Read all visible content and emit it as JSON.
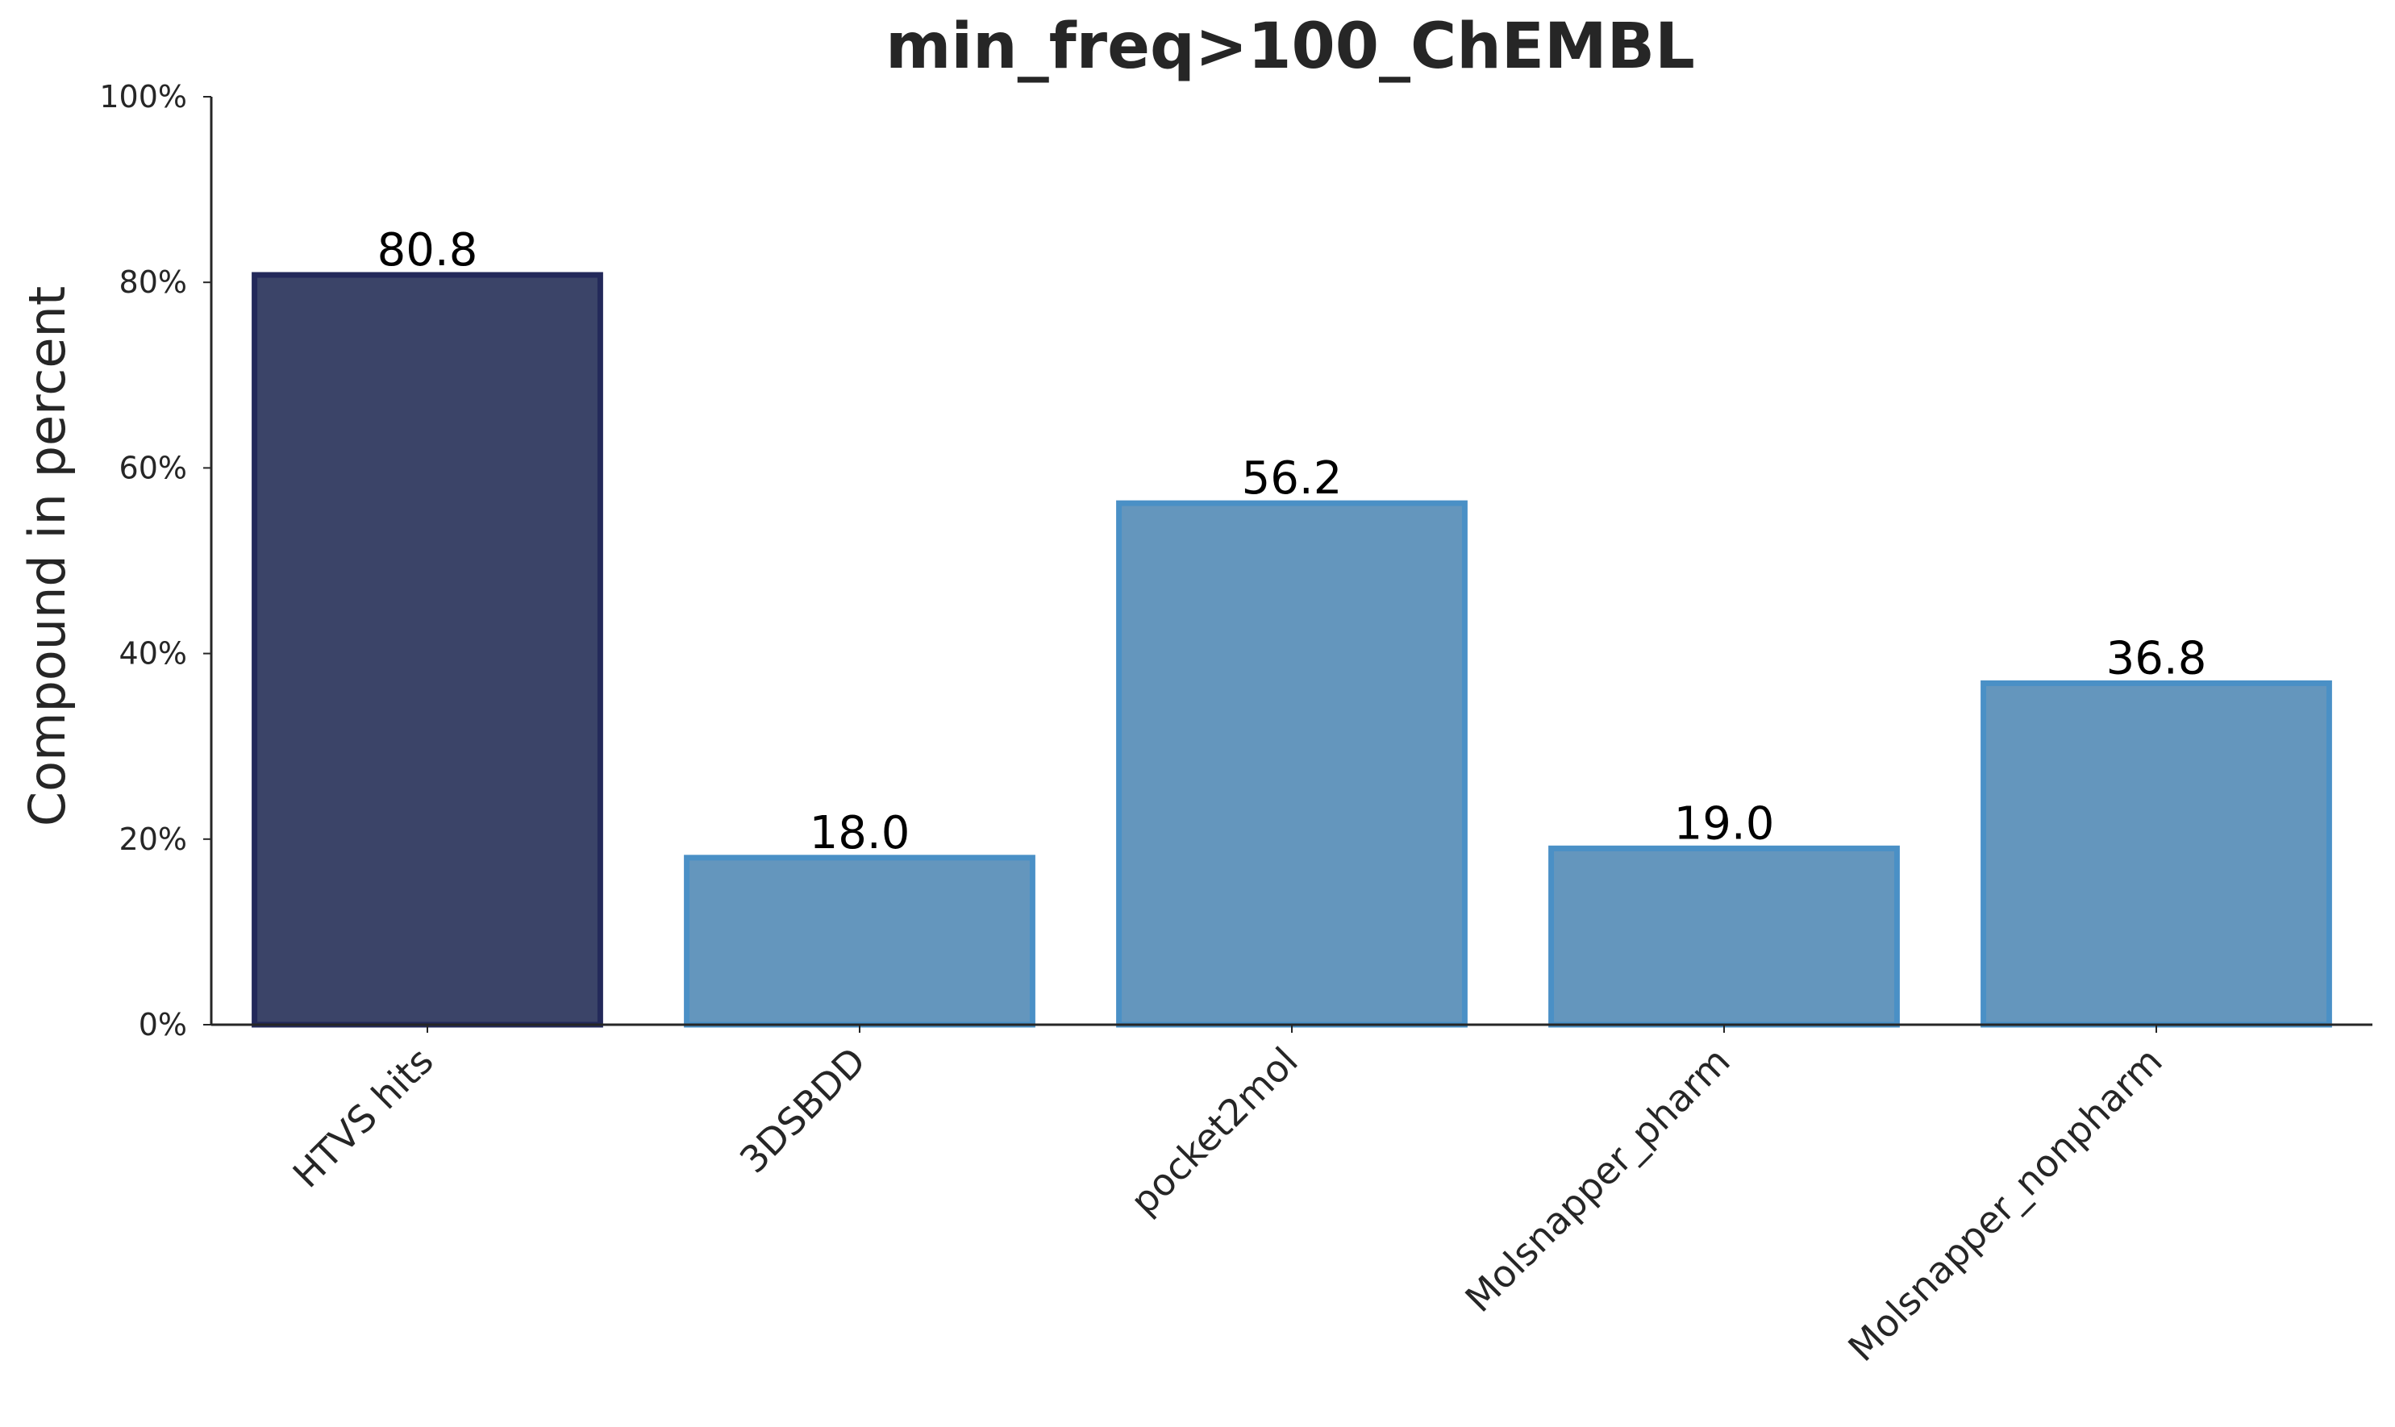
{
  "chart_data": {
    "type": "bar",
    "title": "min_freq>100_ChEMBL",
    "xlabel": "",
    "ylabel": "Compound in percent",
    "categories": [
      "HTVS hits",
      "3DSBDD",
      "pocket2mol",
      "Molsnapper_pharm",
      "Molsnapper_nonpharm"
    ],
    "values": [
      80.8,
      18.0,
      56.2,
      19.0,
      36.8
    ],
    "data_labels": [
      "80.8",
      "18.0",
      "56.2",
      "19.0",
      "36.8"
    ],
    "ylim": [
      0,
      100
    ],
    "yticks": [
      0,
      20,
      40,
      60,
      80,
      100
    ],
    "ytick_labels": [
      "0%",
      "20%",
      "40%",
      "60%",
      "80%",
      "100%"
    ],
    "grid": false,
    "legend": "none",
    "colors": {
      "highlight_fill": "#3b4468",
      "highlight_edge": "#23295a",
      "default_fill": "#6496bd",
      "default_edge": "#4a90c6",
      "axis": "#262626"
    },
    "bar_colors": [
      "highlight",
      "default",
      "default",
      "default",
      "default"
    ]
  }
}
